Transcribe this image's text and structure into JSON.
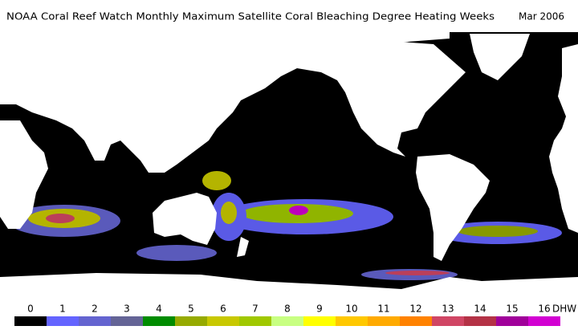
{
  "header": {
    "title": "NOAA Coral Reef Watch Monthly Maximum Satellite Coral Bleaching Degree Heating Weeks",
    "date": "Mar 2006"
  },
  "legend": {
    "unit": "DHW",
    "bins": [
      {
        "value": 0,
        "color": "#000000"
      },
      {
        "value": 1,
        "color": "#6464ff"
      },
      {
        "value": 2,
        "color": "#6464d0"
      },
      {
        "value": 3,
        "color": "#646496"
      },
      {
        "value": 4,
        "color": "#008c00"
      },
      {
        "value": 5,
        "color": "#96aa00"
      },
      {
        "value": 6,
        "color": "#c8c800"
      },
      {
        "value": 7,
        "color": "#a0c800"
      },
      {
        "value": 8,
        "color": "#c8ff82"
      },
      {
        "value": 9,
        "color": "#ffff00"
      },
      {
        "value": 10,
        "color": "#ffc800"
      },
      {
        "value": 11,
        "color": "#ffaa00"
      },
      {
        "value": 12,
        "color": "#ff8200"
      },
      {
        "value": 13,
        "color": "#d04664"
      },
      {
        "value": 14,
        "color": "#b43246"
      },
      {
        "value": 15,
        "color": "#a0009a"
      },
      {
        "value": 16,
        "color": "#d200d2"
      }
    ]
  }
}
